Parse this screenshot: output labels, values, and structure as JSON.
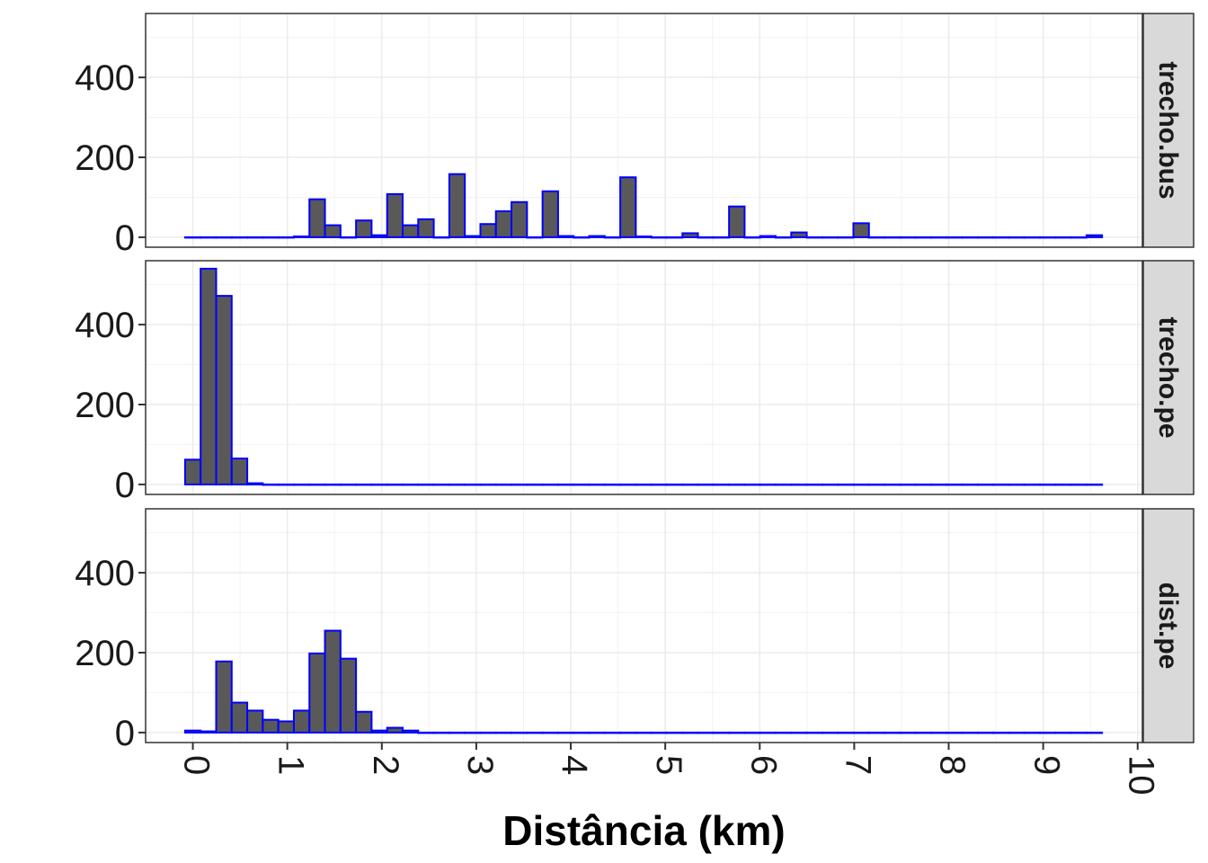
{
  "chart_data": {
    "type": "bar",
    "subtype": "faceted-histogram",
    "xlabel": "Distância (km)",
    "ylabel": "",
    "xlim": [
      -0.5,
      10.05
    ],
    "ylim": [
      -25,
      560
    ],
    "x_ticks": [
      "0",
      "1",
      "2",
      "3",
      "4",
      "5",
      "6",
      "7",
      "8",
      "9",
      "10"
    ],
    "y_ticks": [
      "0",
      "200",
      "400"
    ],
    "bin_width": 0.1645,
    "bin_centers": [
      0.0,
      0.1645,
      0.329,
      0.4935,
      0.658,
      0.8225,
      0.987,
      1.1515,
      1.316,
      1.4805,
      1.645,
      1.8095,
      1.974,
      2.1385,
      2.303,
      2.4675,
      2.632,
      2.7965,
      2.961,
      3.1255,
      3.29,
      3.4545,
      3.619,
      3.7835,
      3.948,
      4.1125,
      4.277,
      4.4415,
      4.606,
      4.7705,
      4.935,
      5.0995,
      5.264,
      5.4285,
      5.593,
      5.7575,
      5.922,
      6.0865,
      6.251,
      6.4155,
      6.58,
      6.7445,
      6.909,
      7.0735,
      7.238,
      7.4025,
      7.567,
      7.7315,
      7.896,
      8.0605,
      8.225,
      8.3895,
      8.554,
      8.7185,
      8.883,
      9.0475,
      9.212,
      9.3765,
      9.541
    ],
    "grid": true,
    "bar_fill": "#595959",
    "bar_outline": "#0000ff",
    "strip_fill": "#d9d9d9",
    "panel_border": "#333333",
    "series": [
      {
        "name": "trecho.bus",
        "values": [
          0,
          0,
          0,
          0,
          0,
          0,
          0,
          2,
          95,
          30,
          0,
          42,
          5,
          108,
          30,
          45,
          0,
          158,
          3,
          33,
          65,
          88,
          0,
          115,
          3,
          0,
          3,
          0,
          150,
          2,
          0,
          0,
          10,
          0,
          0,
          77,
          0,
          3,
          0,
          12,
          0,
          0,
          0,
          35,
          0,
          0,
          0,
          0,
          0,
          0,
          0,
          0,
          0,
          0,
          0,
          0,
          0,
          0,
          5
        ]
      },
      {
        "name": "trecho.pe",
        "values": [
          62,
          540,
          472,
          65,
          3,
          0,
          0,
          0,
          0,
          0,
          0,
          0,
          0,
          0,
          0,
          0,
          0,
          0,
          0,
          0,
          0,
          0,
          0,
          0,
          0,
          0,
          0,
          0,
          0,
          0,
          0,
          0,
          0,
          0,
          0,
          0,
          0,
          0,
          0,
          0,
          0,
          0,
          0,
          0,
          0,
          0,
          0,
          0,
          0,
          0,
          0,
          0,
          0,
          0,
          0,
          0,
          0,
          0,
          0
        ]
      },
      {
        "name": "dist.pe",
        "values": [
          5,
          3,
          178,
          75,
          55,
          32,
          28,
          55,
          198,
          255,
          185,
          52,
          5,
          12,
          5,
          0,
          0,
          0,
          0,
          0,
          0,
          0,
          0,
          0,
          0,
          0,
          0,
          0,
          0,
          0,
          0,
          0,
          0,
          0,
          0,
          0,
          0,
          0,
          0,
          0,
          0,
          0,
          0,
          0,
          0,
          0,
          0,
          0,
          0,
          0,
          0,
          0,
          0,
          0,
          0,
          0,
          0,
          0,
          0
        ]
      }
    ]
  }
}
